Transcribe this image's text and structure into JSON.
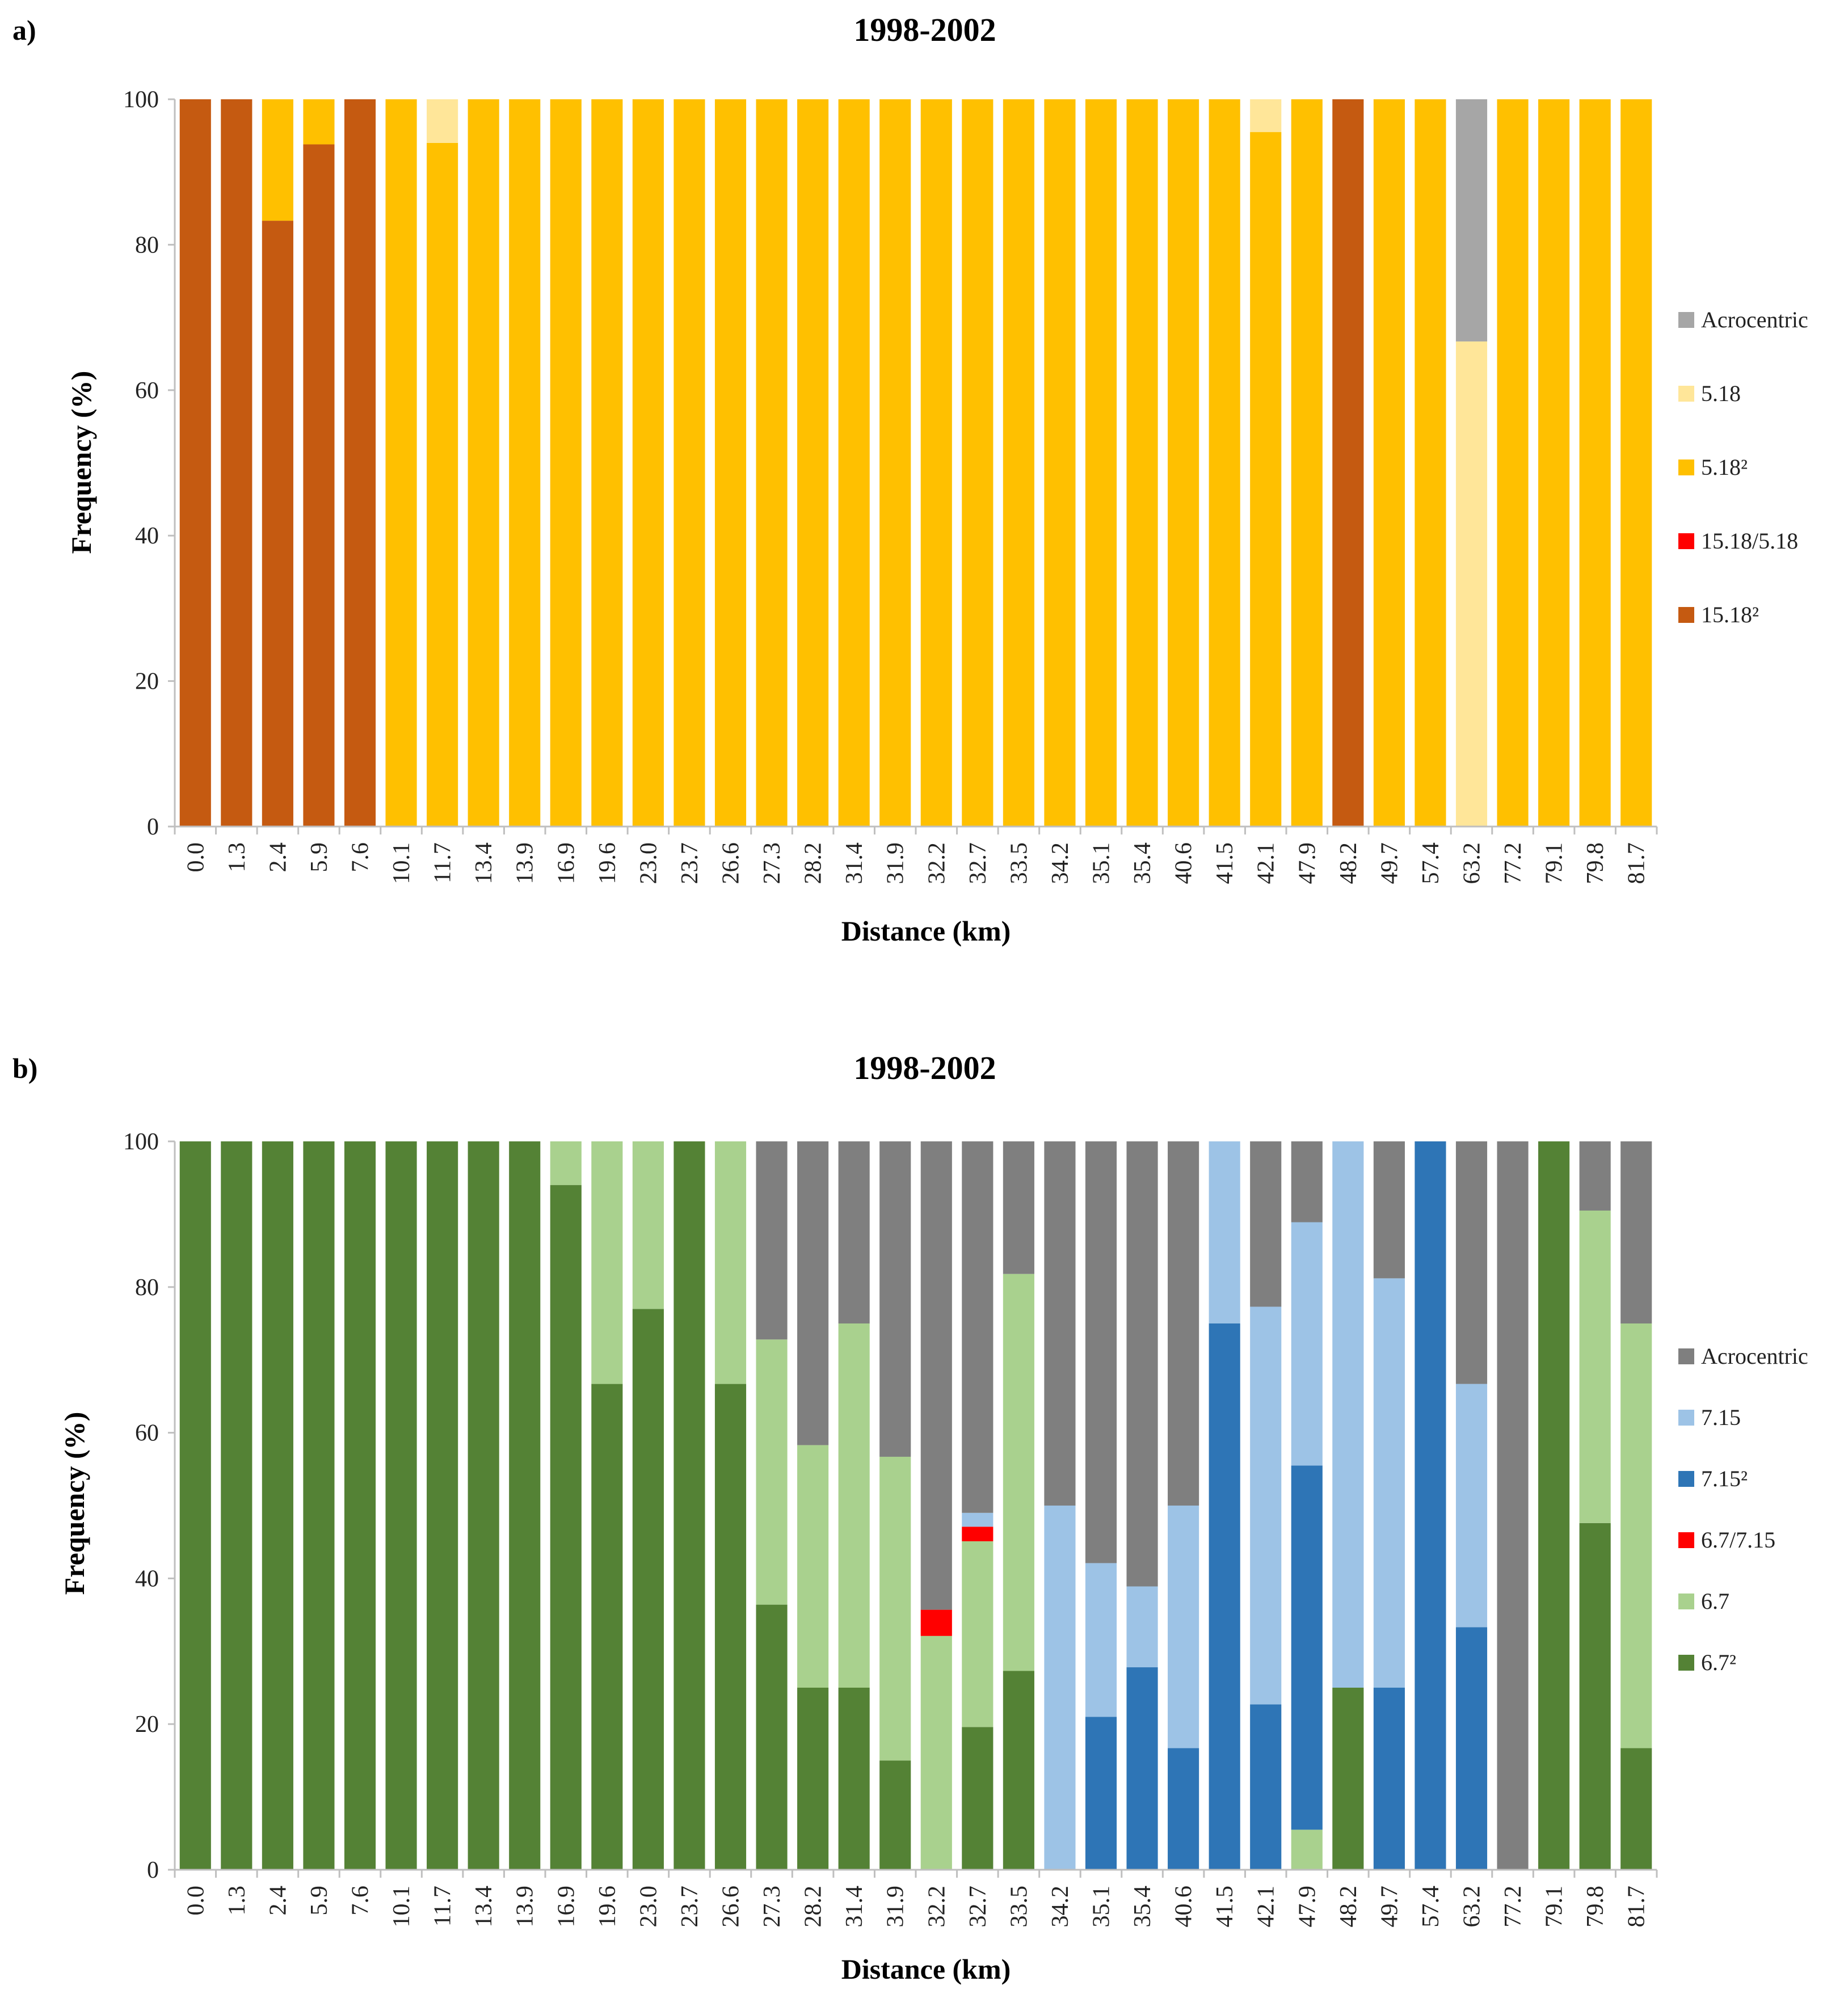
{
  "chart_data": [
    {
      "type": "bar",
      "stacked": true,
      "percent": true,
      "panel_label": "a)",
      "title": "1998-2002",
      "xlabel": "Distance (km)",
      "ylabel": "Frequency (%)",
      "ylim": [
        0,
        100
      ],
      "yticks": [
        "0",
        "20",
        "40",
        "60",
        "80",
        "100"
      ],
      "legend_position": "right",
      "categories": [
        "0.0",
        "1.3",
        "2.4",
        "5.9",
        "7.6",
        "10.1",
        "11.7",
        "13.4",
        "13.9",
        "16.9",
        "19.6",
        "23.0",
        "23.7",
        "26.6",
        "27.3",
        "28.2",
        "31.4",
        "31.9",
        "32.2",
        "32.7",
        "33.5",
        "34.2",
        "35.1",
        "35.4",
        "40.6",
        "41.5",
        "42.1",
        "47.9",
        "48.2",
        "49.7",
        "57.4",
        "63.2",
        "77.2",
        "79.1",
        "79.8",
        "81.7"
      ],
      "series": [
        {
          "name": "15.18²",
          "color": "#C55A11",
          "values": [
            100,
            100,
            83.3,
            93.8,
            100,
            0,
            0,
            0,
            0,
            0,
            0,
            0,
            0,
            0,
            0,
            0,
            0,
            0,
            0,
            0,
            0,
            0,
            0,
            0,
            0,
            0,
            0,
            0,
            100,
            0,
            0,
            0,
            0,
            0,
            0,
            0
          ]
        },
        {
          "name": "15.18/5.18",
          "color": "#FF0000",
          "values": [
            0,
            0,
            0,
            0,
            0,
            0,
            0,
            0,
            0,
            0,
            0,
            0,
            0,
            0,
            0,
            0,
            0,
            0,
            0,
            0,
            0,
            0,
            0,
            0,
            0,
            0,
            0,
            0,
            0,
            0,
            0,
            0,
            0,
            0,
            0,
            0
          ]
        },
        {
          "name": "5.18²",
          "color": "#FFC000",
          "values": [
            0,
            0,
            16.7,
            6.2,
            0,
            100,
            94,
            100,
            100,
            100,
            100,
            100,
            100,
            100,
            100,
            100,
            100,
            100,
            100,
            100,
            100,
            100,
            100,
            100,
            100,
            100,
            95.5,
            100,
            0,
            100,
            100,
            0,
            100,
            100,
            100,
            100
          ]
        },
        {
          "name": "5.18",
          "color": "#FFE699",
          "values": [
            0,
            0,
            0,
            0,
            0,
            0,
            6,
            0,
            0,
            0,
            0,
            0,
            0,
            0,
            0,
            0,
            0,
            0,
            0,
            0,
            0,
            0,
            0,
            0,
            0,
            0,
            4.5,
            0,
            0,
            0,
            0,
            66.7,
            0,
            0,
            0,
            0
          ]
        },
        {
          "name": "Acrocentric",
          "color": "#A6A6A6",
          "values": [
            0,
            0,
            0,
            0,
            0,
            0,
            0,
            0,
            0,
            0,
            0,
            0,
            0,
            0,
            0,
            0,
            0,
            0,
            0,
            0,
            0,
            0,
            0,
            0,
            0,
            0,
            0,
            0,
            0,
            0,
            0,
            33.3,
            0,
            0,
            0,
            0
          ]
        }
      ]
    },
    {
      "type": "bar",
      "stacked": true,
      "percent": true,
      "panel_label": "b)",
      "title": "1998-2002",
      "xlabel": "Distance (km)",
      "ylabel": "Frequency (%)",
      "ylim": [
        0,
        100
      ],
      "yticks": [
        "0",
        "20",
        "40",
        "60",
        "80",
        "100"
      ],
      "legend_position": "right",
      "categories": [
        "0.0",
        "1.3",
        "2.4",
        "5.9",
        "7.6",
        "10.1",
        "11.7",
        "13.4",
        "13.9",
        "16.9",
        "19.6",
        "23.0",
        "23.7",
        "26.6",
        "27.3",
        "28.2",
        "31.4",
        "31.9",
        "32.2",
        "32.7",
        "33.5",
        "34.2",
        "35.1",
        "35.4",
        "40.6",
        "41.5",
        "42.1",
        "47.9",
        "48.2",
        "49.7",
        "57.4",
        "63.2",
        "77.2",
        "79.1",
        "79.8",
        "81.7"
      ],
      "series": [
        {
          "name": "6.7²",
          "color": "#548235",
          "values": [
            100,
            100,
            100,
            100,
            100,
            100,
            100,
            100,
            100,
            94,
            66.7,
            77,
            100,
            66.7,
            36.4,
            25,
            25,
            15,
            0,
            19.6,
            27.3,
            0,
            0,
            0,
            0,
            0,
            0,
            0,
            25,
            0,
            0,
            0,
            0,
            100,
            47.6,
            16.7
          ]
        },
        {
          "name": "6.7",
          "color": "#A9D18E",
          "values": [
            0,
            0,
            0,
            0,
            0,
            0,
            0,
            0,
            0,
            6,
            33.3,
            23,
            0,
            33.3,
            36.4,
            33.3,
            50,
            41.7,
            32.1,
            25.5,
            54.5,
            0,
            0,
            0,
            0,
            0,
            0,
            5.5,
            0,
            0,
            0,
            0,
            0,
            0,
            42.9,
            58.3
          ]
        },
        {
          "name": "6.7/7.15",
          "color": "#FF0000",
          "values": [
            0,
            0,
            0,
            0,
            0,
            0,
            0,
            0,
            0,
            0,
            0,
            0,
            0,
            0,
            0,
            0,
            0,
            0,
            3.6,
            2,
            0,
            0,
            0,
            0,
            0,
            0,
            0,
            0,
            0,
            0,
            0,
            0,
            0,
            0,
            0,
            0
          ]
        },
        {
          "name": "7.15²",
          "color": "#2E75B6",
          "values": [
            0,
            0,
            0,
            0,
            0,
            0,
            0,
            0,
            0,
            0,
            0,
            0,
            0,
            0,
            0,
            0,
            0,
            0,
            0,
            0,
            0,
            0,
            21,
            27.8,
            16.7,
            75,
            22.7,
            50,
            0,
            25,
            100,
            33.3,
            0,
            0,
            0,
            0
          ]
        },
        {
          "name": "7.15",
          "color": "#9DC3E6",
          "values": [
            0,
            0,
            0,
            0,
            0,
            0,
            0,
            0,
            0,
            0,
            0,
            0,
            0,
            0,
            0,
            0,
            0,
            0,
            0,
            1.9,
            0,
            50,
            21.1,
            11.1,
            33.3,
            25,
            54.6,
            33.4,
            75,
            56.2,
            0,
            33.4,
            0,
            0,
            0,
            0
          ]
        },
        {
          "name": "Acrocentric",
          "color": "#7F7F7F",
          "values": [
            0,
            0,
            0,
            0,
            0,
            0,
            0,
            0,
            0,
            0,
            0,
            0,
            0,
            0,
            27.2,
            41.7,
            25,
            43.3,
            64.3,
            51,
            18.2,
            50,
            57.9,
            61.1,
            50,
            0,
            22.7,
            11.1,
            0,
            18.8,
            0,
            33.3,
            100,
            0,
            9.5,
            25
          ]
        }
      ]
    }
  ]
}
